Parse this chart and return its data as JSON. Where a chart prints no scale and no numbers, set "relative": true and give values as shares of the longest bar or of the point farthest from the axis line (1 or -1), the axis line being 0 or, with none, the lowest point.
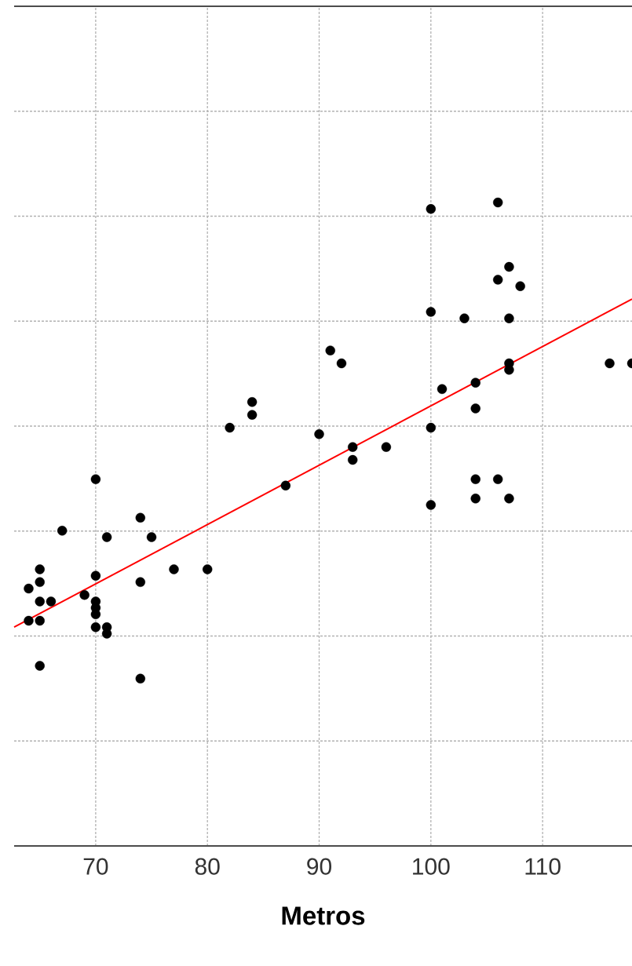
{
  "chart_data": {
    "type": "scatter",
    "xlabel": "Metros",
    "relative": true,
    "xlim": [
      62.7,
      118
    ],
    "xticks": [
      70,
      80,
      90,
      100,
      110
    ],
    "grid": true,
    "marker": "circle",
    "tick_labels": "x",
    "series": [
      {
        "color": "#000000",
        "x": [
          70,
          74,
          71,
          67,
          75,
          77,
          65,
          80,
          65,
          70,
          74,
          64,
          69,
          65,
          66,
          70,
          70,
          70,
          64,
          65,
          70,
          71,
          71,
          65,
          74,
          82,
          84,
          84,
          87,
          90,
          91,
          92,
          93,
          93,
          96,
          100,
          106,
          107,
          106,
          108,
          100,
          103,
          107,
          107,
          107,
          101,
          104,
          104,
          100,
          106,
          104,
          104,
          100,
          107,
          116,
          118
        ],
        "values": [
          0.57,
          0.51,
          0.48,
          0.49,
          0.48,
          0.43,
          0.43,
          0.43,
          0.41,
          0.42,
          0.41,
          0.4,
          0.39,
          0.38,
          0.38,
          0.38,
          0.37,
          0.36,
          0.35,
          0.35,
          0.34,
          0.34,
          0.33,
          0.28,
          0.26,
          0.65,
          0.69,
          0.67,
          0.56,
          0.64,
          0.77,
          0.75,
          0.62,
          0.6,
          0.62,
          0.99,
          1,
          0.9,
          0.88,
          0.87,
          0.83,
          0.82,
          0.82,
          0.75,
          0.74,
          0.71,
          0.72,
          0.68,
          0.65,
          0.57,
          0.57,
          0.54,
          0.53,
          0.54,
          0.75,
          0.75
        ]
      },
      {
        "type": "line",
        "marker": "none",
        "color": "#ff0000",
        "x": [
          62.7,
          118
        ],
        "values": [
          0.34,
          0.85
        ]
      }
    ]
  }
}
